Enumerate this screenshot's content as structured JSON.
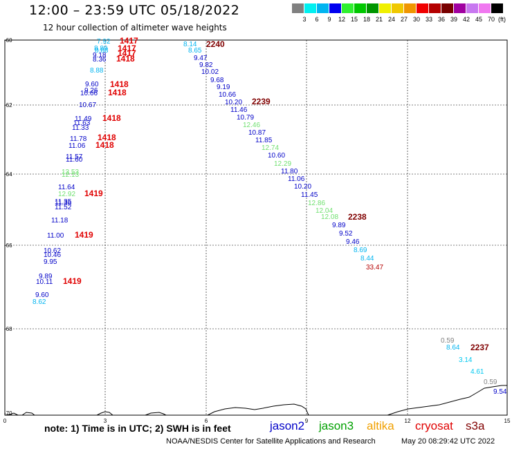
{
  "header": {
    "title": "12:00 – 23:59 UTC 05/18/2022",
    "subtitle": "12 hour collection of altimeter wave heights"
  },
  "legend": {
    "colors": [
      "#808080",
      "#00f0f0",
      "#00b4f0",
      "#0000f0",
      "#30f030",
      "#00c800",
      "#009600",
      "#f0f000",
      "#f0c800",
      "#f09600",
      "#f00000",
      "#b40000",
      "#780000",
      "#a000a0",
      "#c878f0",
      "#f078f0",
      "#000000"
    ],
    "labels": [
      "3",
      "6",
      "9",
      "12",
      "15",
      "18",
      "21",
      "24",
      "27",
      "30",
      "33",
      "36",
      "39",
      "42",
      "45",
      "70"
    ],
    "unit": "(ft)"
  },
  "map": {
    "lat_labels": [
      "-60",
      "-62",
      "-64",
      "-66",
      "-68",
      "-70"
    ],
    "lon_labels": [
      "0",
      "3",
      "6",
      "9",
      "12",
      "15"
    ],
    "pass_times": [
      {
        "t": "1417",
        "c": "#e00000"
      },
      {
        "t": "1417",
        "c": "#e00000"
      },
      {
        "t": "1417",
        "c": "#e00000"
      },
      {
        "t": "1418",
        "c": "#e00000"
      },
      {
        "t": "1418",
        "c": "#e00000"
      },
      {
        "t": "1418",
        "c": "#e00000"
      },
      {
        "t": "1418",
        "c": "#e00000"
      },
      {
        "t": "1418",
        "c": "#e00000"
      },
      {
        "t": "1418",
        "c": "#e00000"
      },
      {
        "t": "1419",
        "c": "#e00000"
      },
      {
        "t": "1419",
        "c": "#e00000"
      },
      {
        "t": "1419",
        "c": "#e00000"
      },
      {
        "t": "2240",
        "c": "#800000"
      },
      {
        "t": "2239",
        "c": "#800000"
      },
      {
        "t": "2238",
        "c": "#800000"
      },
      {
        "t": "2237",
        "c": "#800000"
      }
    ],
    "swh_values": [
      {
        "v": "7.92",
        "c": "#00b4f0"
      },
      {
        "v": "8.89",
        "c": "#00b4f0"
      },
      {
        "v": "8.88",
        "c": "#00b4f0"
      },
      {
        "v": "9.18",
        "c": "#0000c8"
      },
      {
        "v": "8.36",
        "c": "#0000c8"
      },
      {
        "v": "8.88",
        "c": "#00b4f0"
      },
      {
        "v": "9.60",
        "c": "#0000c8"
      },
      {
        "v": "9.26",
        "c": "#0000c8"
      },
      {
        "v": "10.66",
        "c": "#0000c8"
      },
      {
        "v": "10.67",
        "c": "#0000c8"
      },
      {
        "v": "11.49",
        "c": "#0000c8"
      },
      {
        "v": "11.63",
        "c": "#0000c8"
      },
      {
        "v": "11.33",
        "c": "#0000c8"
      },
      {
        "v": "11.78",
        "c": "#0000c8"
      },
      {
        "v": "11.06",
        "c": "#0000c8"
      },
      {
        "v": "11.57",
        "c": "#0000c8"
      },
      {
        "v": "11.60",
        "c": "#0000c8"
      },
      {
        "v": "13.53",
        "c": "#70e070"
      },
      {
        "v": "12.13",
        "c": "#70e070"
      },
      {
        "v": "11.64",
        "c": "#0000c8"
      },
      {
        "v": "12.92",
        "c": "#70e070"
      },
      {
        "v": "11.35",
        "c": "#0000c8"
      },
      {
        "v": "11.36",
        "c": "#0000c8"
      },
      {
        "v": "11.52",
        "c": "#0000c8"
      },
      {
        "v": "11.18",
        "c": "#0000c8"
      },
      {
        "v": "11.00",
        "c": "#0000c8"
      },
      {
        "v": "10.62",
        "c": "#0000c8"
      },
      {
        "v": "10.46",
        "c": "#0000c8"
      },
      {
        "v": "9.95",
        "c": "#0000c8"
      },
      {
        "v": "9.89",
        "c": "#0000c8"
      },
      {
        "v": "10.11",
        "c": "#0000c8"
      },
      {
        "v": "9.60",
        "c": "#0000c8"
      },
      {
        "v": "8.62",
        "c": "#00b4f0"
      },
      {
        "v": "8.14",
        "c": "#00b4f0"
      },
      {
        "v": "8.65",
        "c": "#00b4f0"
      },
      {
        "v": "9.47",
        "c": "#0000c8"
      },
      {
        "v": "9.82",
        "c": "#0000c8"
      },
      {
        "v": "10.02",
        "c": "#0000c8"
      },
      {
        "v": "9.68",
        "c": "#0000c8"
      },
      {
        "v": "9.19",
        "c": "#0000c8"
      },
      {
        "v": "10.66",
        "c": "#0000c8"
      },
      {
        "v": "10.20",
        "c": "#0000c8"
      },
      {
        "v": "11.46",
        "c": "#0000c8"
      },
      {
        "v": "10.79",
        "c": "#0000c8"
      },
      {
        "v": "12.46",
        "c": "#70e070"
      },
      {
        "v": "10.87",
        "c": "#0000c8"
      },
      {
        "v": "11.85",
        "c": "#0000c8"
      },
      {
        "v": "12.74",
        "c": "#70e070"
      },
      {
        "v": "10.60",
        "c": "#0000c8"
      },
      {
        "v": "12.29",
        "c": "#70e070"
      },
      {
        "v": "11.80",
        "c": "#0000c8"
      },
      {
        "v": "11.06",
        "c": "#0000c8"
      },
      {
        "v": "10.20",
        "c": "#0000c8"
      },
      {
        "v": "11.45",
        "c": "#0000c8"
      },
      {
        "v": "12.86",
        "c": "#70e070"
      },
      {
        "v": "12.04",
        "c": "#70e070"
      },
      {
        "v": "12.08",
        "c": "#70e070"
      },
      {
        "v": "9.89",
        "c": "#0000c8"
      },
      {
        "v": "9.52",
        "c": "#0000c8"
      },
      {
        "v": "9.46",
        "c": "#0000c8"
      },
      {
        "v": "8.69",
        "c": "#00b4f0"
      },
      {
        "v": "8.44",
        "c": "#00b4f0"
      },
      {
        "v": "33.47",
        "c": "#b40000"
      },
      {
        "v": "0.59",
        "c": "#808080"
      },
      {
        "v": "8.64",
        "c": "#00b4f0"
      },
      {
        "v": "3.14",
        "c": "#00c8f0"
      },
      {
        "v": "4.61",
        "c": "#00c8f0"
      },
      {
        "v": "0.59",
        "c": "#808080"
      },
      {
        "v": "9.54",
        "c": "#0000c8"
      }
    ]
  },
  "footer": {
    "note": "note: 1) Time is in UTC; 2) SWH is in feet",
    "satellites": [
      {
        "name": "jason2",
        "color": "#0000c8"
      },
      {
        "name": "jason3",
        "color": "#00a000"
      },
      {
        "name": "altika",
        "color": "#f0a000"
      },
      {
        "name": "cryosat",
        "color": "#e00000"
      },
      {
        "name": "s3a",
        "color": "#800000"
      }
    ],
    "credit": "NOAA/NESDIS Center for Satellite Applications and Research",
    "timestamp": "May 20 08:29:42 UTC 2022"
  }
}
